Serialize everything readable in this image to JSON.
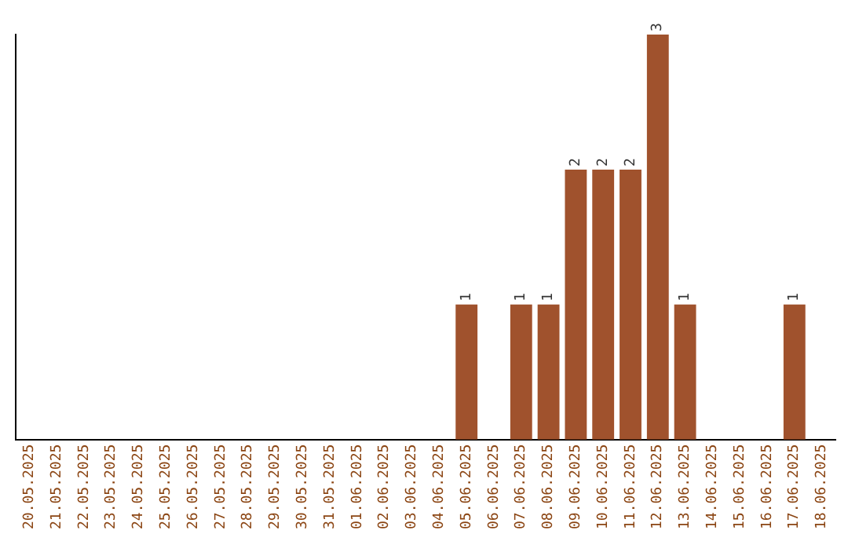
{
  "chart_data": {
    "type": "bar",
    "categories": [
      "20.05.2025",
      "21.05.2025",
      "22.05.2025",
      "23.05.2025",
      "24.05.2025",
      "25.05.2025",
      "26.05.2025",
      "27.05.2025",
      "28.05.2025",
      "29.05.2025",
      "30.05.2025",
      "31.05.2025",
      "01.06.2025",
      "02.06.2025",
      "03.06.2025",
      "04.06.2025",
      "05.06.2025",
      "06.06.2025",
      "07.06.2025",
      "08.06.2025",
      "09.06.2025",
      "10.06.2025",
      "11.06.2025",
      "12.06.2025",
      "13.06.2025",
      "14.06.2025",
      "15.06.2025",
      "16.06.2025",
      "17.06.2025",
      "18.06.2025"
    ],
    "values": [
      null,
      null,
      null,
      null,
      null,
      null,
      null,
      null,
      null,
      null,
      null,
      null,
      null,
      null,
      null,
      null,
      1,
      null,
      1,
      1,
      2,
      2,
      2,
      3,
      1,
      null,
      null,
      null,
      1,
      null
    ],
    "data_labels": true,
    "color": "#a0522d",
    "grid": false,
    "legend": false
  }
}
